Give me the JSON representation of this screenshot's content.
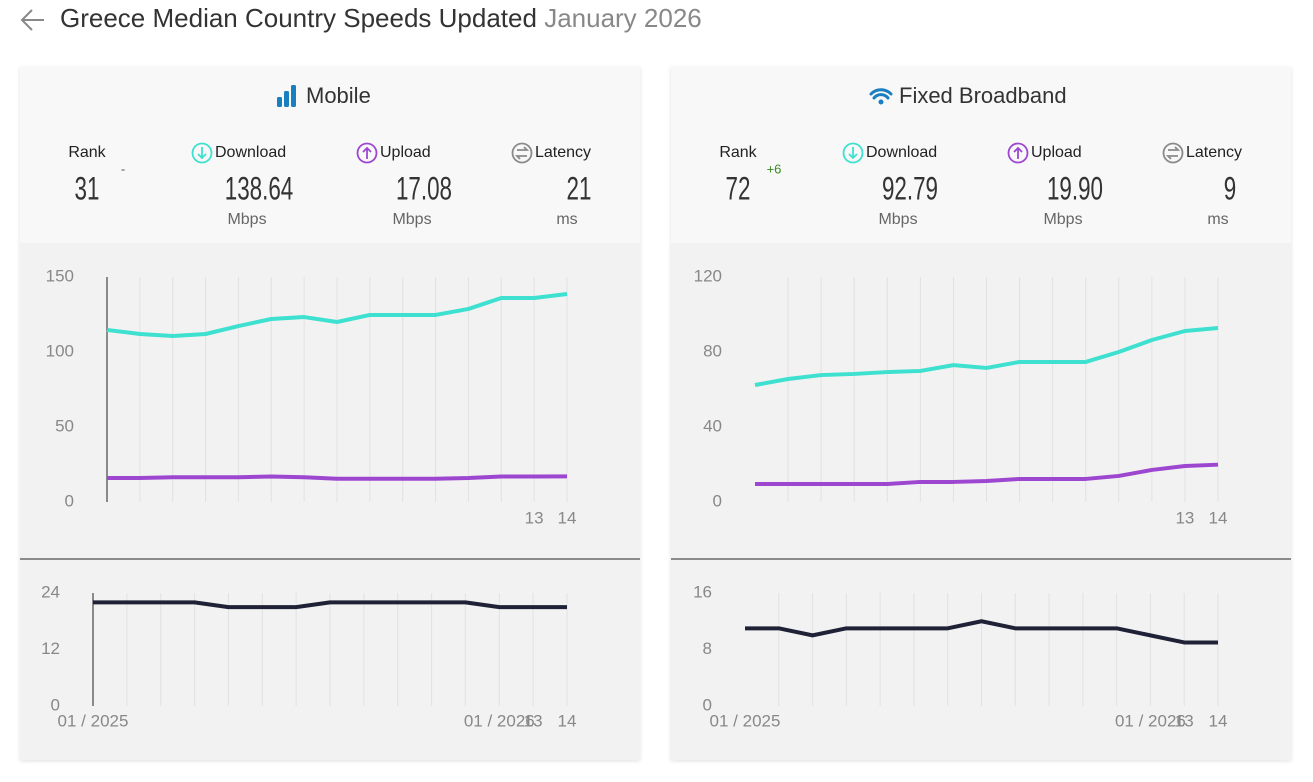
{
  "header": {
    "title": "Greece Median Country Speeds Updated",
    "date": "January 2026"
  },
  "panels": [
    {
      "title": "Mobile",
      "stats": [
        {
          "label": "Rank",
          "value": "31",
          "change": "-"
        },
        {
          "label": "Download",
          "value": "138.64",
          "unit": "Mbps"
        },
        {
          "label": "Upload",
          "value": "17.08",
          "unit": "Mbps"
        },
        {
          "label": "Latency",
          "value": "21",
          "unit": "ms"
        }
      ],
      "speed_chart": {
        "type": "line",
        "ylim": [
          0,
          150
        ],
        "yticks": [
          0,
          50,
          100,
          150
        ],
        "categories": [
          null,
          null,
          null,
          null,
          null,
          null,
          null,
          null,
          null,
          null,
          null,
          null,
          null,
          "13",
          "14"
        ],
        "series": [
          {
            "color": "#3ee0cf",
            "values": [
              114.7,
              112,
              110.7,
              112,
              117.3,
              122,
              123.3,
              120,
              124.7,
              124.7,
              124.7,
              128.7,
              136,
              136,
              138.64
            ]
          },
          {
            "color": "#9d47d1",
            "values": [
              16,
              16,
              16.5,
              16.5,
              16.5,
              17,
              16.5,
              15.5,
              15.5,
              15.5,
              15.5,
              16,
              17,
              17,
              17.08
            ]
          }
        ]
      },
      "latency_chart": {
        "type": "line",
        "ylim": [
          0,
          24
        ],
        "yticks": [
          0,
          12,
          24
        ],
        "categories": [
          null,
          null,
          null,
          null,
          null,
          null,
          null,
          null,
          null,
          null,
          null,
          null,
          null,
          "13",
          "14"
        ],
        "date_labels": [
          "01 / 2025",
          null,
          null,
          null,
          null,
          null,
          null,
          null,
          null,
          null,
          null,
          null,
          "01 / 2026",
          null,
          null
        ],
        "series": [
          {
            "color": "#1f2237",
            "values": [
              22,
              22,
              22,
              22,
              21,
              21,
              21,
              22,
              22,
              22,
              22,
              22,
              21,
              21,
              21
            ]
          }
        ]
      }
    },
    {
      "title": "Fixed Broadband",
      "stats": [
        {
          "label": "Rank",
          "value": "72",
          "change": "+6"
        },
        {
          "label": "Download",
          "value": "92.79",
          "unit": "Mbps"
        },
        {
          "label": "Upload",
          "value": "19.90",
          "unit": "Mbps"
        },
        {
          "label": "Latency",
          "value": "9",
          "unit": "ms"
        }
      ],
      "speed_chart": {
        "type": "line",
        "ylim": [
          0,
          120
        ],
        "yticks": [
          0,
          40,
          80,
          120
        ],
        "categories": [
          null,
          null,
          null,
          null,
          null,
          null,
          null,
          null,
          null,
          null,
          null,
          null,
          null,
          "13",
          "14"
        ],
        "series": [
          {
            "color": "#3ee0cf",
            "values": [
              62.4,
              65.6,
              67.7,
              68.3,
              69.3,
              69.9,
              73,
              71.5,
              74.7,
              74.7,
              74.7,
              80,
              86.4,
              91.2,
              92.79
            ]
          },
          {
            "color": "#9d47d1",
            "values": [
              9.6,
              9.6,
              9.6,
              9.6,
              9.6,
              10.7,
              10.7,
              11.2,
              12.3,
              12.3,
              12.3,
              13.9,
              17.1,
              19.2,
              19.9
            ]
          }
        ]
      },
      "latency_chart": {
        "type": "line",
        "ylim": [
          0,
          16
        ],
        "yticks": [
          0,
          8,
          16
        ],
        "categories": [
          null,
          null,
          null,
          null,
          null,
          null,
          null,
          null,
          null,
          null,
          null,
          null,
          null,
          "13",
          "14"
        ],
        "date_labels": [
          "01 / 2025",
          null,
          null,
          null,
          null,
          null,
          null,
          null,
          null,
          null,
          null,
          null,
          "01 / 2026",
          null,
          null
        ],
        "series": [
          {
            "color": "#1f2237",
            "values": [
              11,
              11,
              10,
              11,
              11,
              11,
              11,
              12,
              11,
              11,
              11,
              11,
              10,
              9,
              9
            ]
          }
        ]
      }
    }
  ]
}
